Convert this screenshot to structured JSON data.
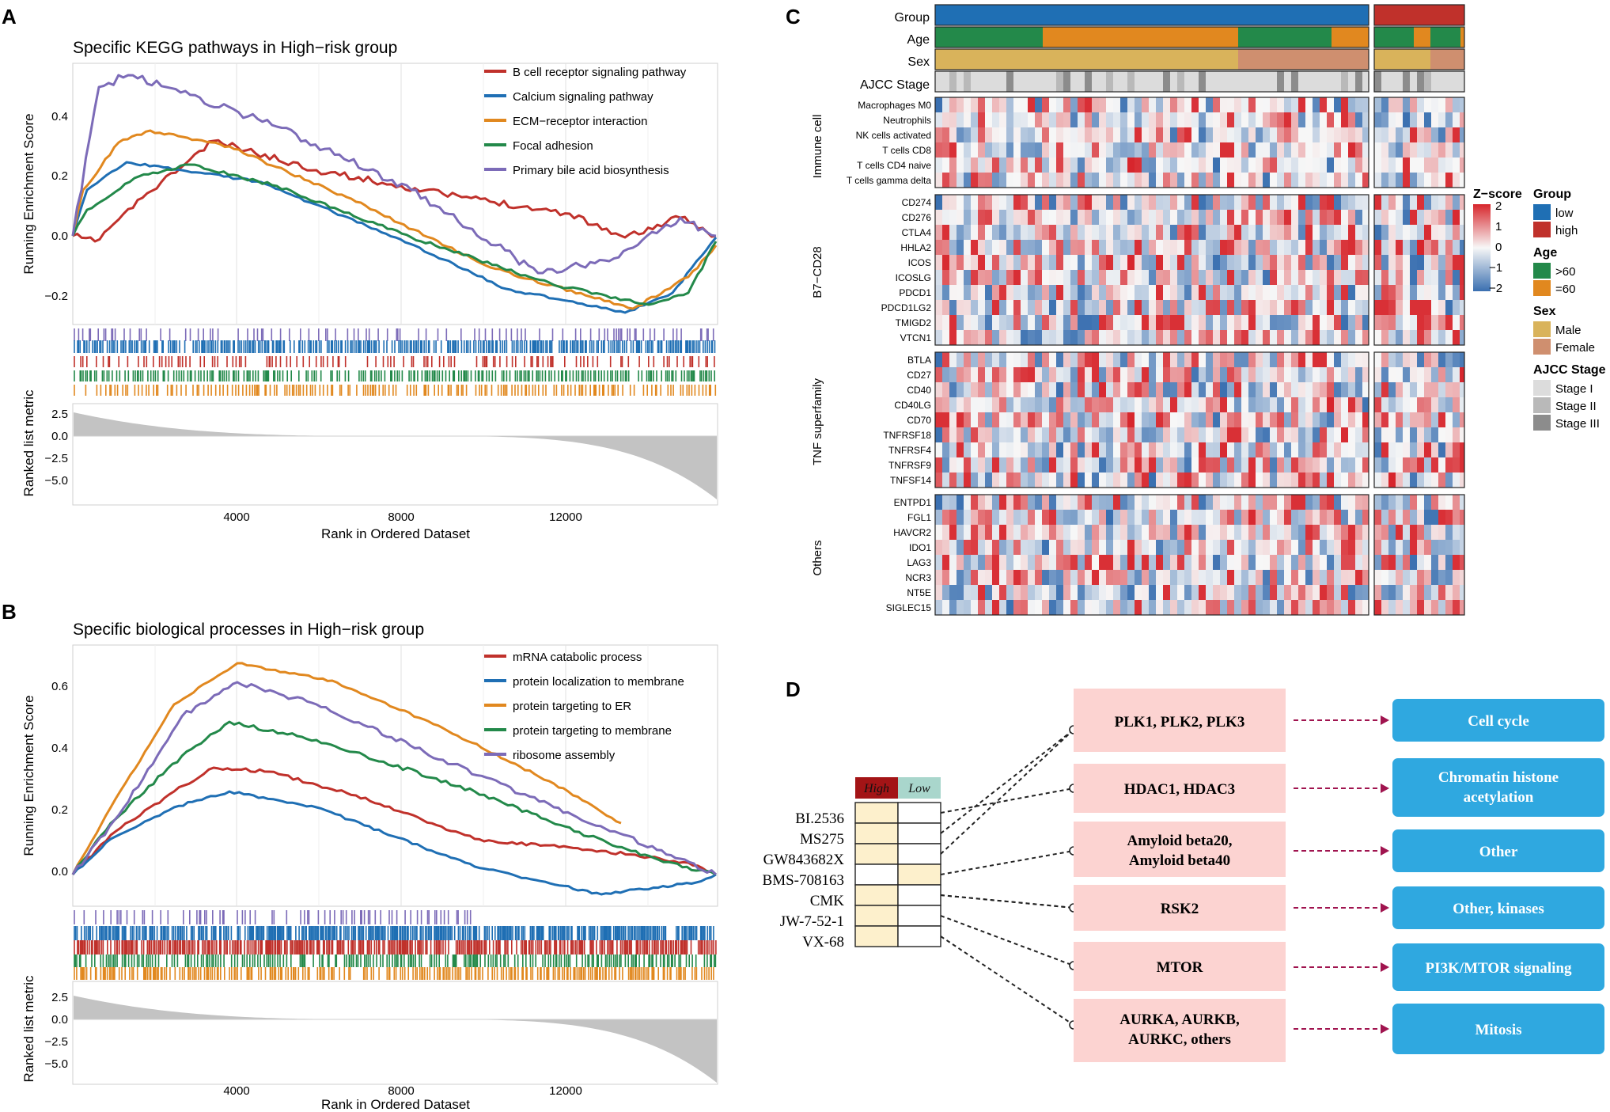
{
  "panels": {
    "A": {
      "letter": "A",
      "title": "Specific KEGG pathways in High−risk group",
      "ylabel": "Running Enrichment Score",
      "rank_ylabel": "Ranked list metric",
      "xlabel": "Rank in Ordered Dataset",
      "es_yticks": [
        "0.4",
        "0.2",
        "0.0",
        "−0.2"
      ],
      "rank_yticks": [
        "2.5",
        "0.0",
        "−2.5",
        "−5.0"
      ],
      "xticks": [
        "4000",
        "8000",
        "12000"
      ],
      "legend": [
        {
          "label": "B cell receptor signaling pathway",
          "color": "#c0312b"
        },
        {
          "label": "Calcium signaling pathway",
          "color": "#1f6fb4"
        },
        {
          "label": "ECM−receptor interaction",
          "color": "#e1881f"
        },
        {
          "label": "Focal adhesion",
          "color": "#23894a"
        },
        {
          "label": "Primary bile acid biosynthesis",
          "color": "#7c6bb8"
        }
      ]
    },
    "B": {
      "letter": "B",
      "title": "Specific biological processes in High−risk group",
      "ylabel": "Running Enrichment Score",
      "rank_ylabel": "Ranked list metric",
      "xlabel": "Rank in Ordered Dataset",
      "es_yticks": [
        "0.6",
        "0.4",
        "0.2",
        "0.0"
      ],
      "rank_yticks": [
        "2.5",
        "0.0",
        "−2.5",
        "−5.0"
      ],
      "xticks": [
        "4000",
        "8000",
        "12000"
      ],
      "legend": [
        {
          "label": "mRNA catabolic process",
          "color": "#c0312b"
        },
        {
          "label": "protein localization to membrane",
          "color": "#1f6fb4"
        },
        {
          "label": "protein targeting to ER",
          "color": "#e1881f"
        },
        {
          "label": "protein targeting to membrane",
          "color": "#23894a"
        },
        {
          "label": "ribosome assembly",
          "color": "#7c6bb8"
        }
      ]
    },
    "C": {
      "letter": "C",
      "annotation_rows": [
        "Group",
        "Age",
        "Sex",
        "AJCC Stage"
      ],
      "groups": [
        {
          "label": "Immune cell",
          "rows": [
            "Macrophages M0",
            "Neutrophils",
            "NK cells activated",
            "T cells CD8",
            "T cells CD4 naive",
            "T cells gamma delta"
          ]
        },
        {
          "label": "B7−CD28",
          "rows": [
            "CD274",
            "CD276",
            "CTLA4",
            "HHLA2",
            "ICOS",
            "ICOSLG",
            "PDCD1",
            "PDCD1LG2",
            "TMIGD2",
            "VTCN1"
          ]
        },
        {
          "label": "TNF superfamily",
          "rows": [
            "BTLA",
            "CD27",
            "CD40",
            "CD40LG",
            "CD70",
            "TNFRSF18",
            "TNFRSF4",
            "TNFRSF9",
            "TNFSF14"
          ]
        },
        {
          "label": "Others",
          "rows": [
            "ENTPD1",
            "FGL1",
            "HAVCR2",
            "IDO1",
            "LAG3",
            "NCR3",
            "NT5E",
            "SIGLEC15"
          ]
        }
      ],
      "zscore_title": "Z−score",
      "zscore_ticks": [
        "2",
        "1",
        "0",
        "−1",
        "−2"
      ],
      "legends": [
        {
          "title": "Group",
          "items": [
            {
              "label": "low",
              "color": "#1f6fb4"
            },
            {
              "label": "high",
              "color": "#c0312b"
            }
          ]
        },
        {
          "title": "Age",
          "items": [
            {
              "label": ">60",
              "color": "#23894a"
            },
            {
              "label": "=60",
              "color": "#e1881f"
            }
          ]
        },
        {
          "title": "Sex",
          "items": [
            {
              "label": "Male",
              "color": "#d9b35b"
            },
            {
              "label": "Female",
              "color": "#cf8f6f"
            }
          ]
        },
        {
          "title": "AJCC Stage",
          "items": [
            {
              "label": "Stage I",
              "color": "#dcdcdc"
            },
            {
              "label": "Stage II",
              "color": "#b9b9b9"
            },
            {
              "label": "Stage III",
              "color": "#8c8c8c"
            }
          ]
        }
      ]
    },
    "D": {
      "letter": "D",
      "table_header": {
        "high": "High",
        "low": "Low"
      },
      "drugs": [
        {
          "name": "BI.2536",
          "high": true,
          "low": false
        },
        {
          "name": "MS275",
          "high": true,
          "low": false
        },
        {
          "name": "GW843682X",
          "high": true,
          "low": false
        },
        {
          "name": "BMS-708163",
          "high": false,
          "low": true
        },
        {
          "name": "CMK",
          "high": true,
          "low": false
        },
        {
          "name": "JW-7-52-1",
          "high": true,
          "low": false
        },
        {
          "name": "VX-68",
          "high": true,
          "low": false
        }
      ],
      "targets": [
        {
          "lines": [
            "PLK1, PLK2, PLK3"
          ],
          "pathway": [
            "Cell cycle"
          ]
        },
        {
          "lines": [
            "HDAC1, HDAC3"
          ],
          "pathway": [
            "Chromatin histone",
            "acetylation"
          ]
        },
        {
          "lines": [
            "Amyloid beta20,",
            "Amyloid beta40"
          ],
          "pathway": [
            "Other"
          ]
        },
        {
          "lines": [
            "RSK2"
          ],
          "pathway": [
            "Other, kinases"
          ]
        },
        {
          "lines": [
            "MTOR"
          ],
          "pathway": [
            "PI3K/MTOR signaling"
          ]
        },
        {
          "lines": [
            "AURKA, AURKB,",
            "AURKC, others"
          ],
          "pathway": [
            "Mitosis"
          ]
        }
      ],
      "colors": {
        "target_box": "#fcd3d1",
        "pathway_box": "#2fa8e0",
        "high_header": "#a31416",
        "low_header": "#a9d6cc",
        "cell_fill": "#fdf0cc",
        "arrow": "#a0144f"
      }
    }
  }
}
